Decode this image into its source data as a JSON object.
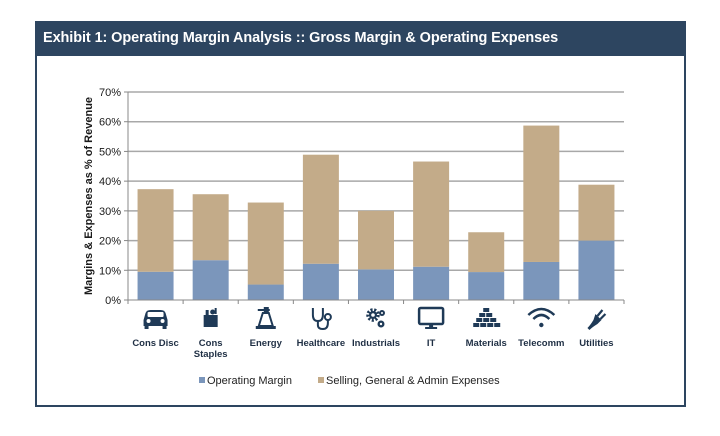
{
  "header": {
    "title": "Exhibit 1: Operating Margin Analysis :: Gross Margin & Operating Expenses"
  },
  "colors": {
    "frame": "#2d4560",
    "operating_margin": "#7b96bb",
    "sga": "#c3ab89",
    "grid": "#a8a8a8",
    "icon": "#1f3a57"
  },
  "chart_data": {
    "type": "bar",
    "stacked": true,
    "title": "Exhibit 1: Operating Margin Analysis :: Gross Margin & Operating Expenses",
    "xlabel": "",
    "ylabel": "Margins & Expenses as % of Revenue",
    "ylim": [
      0,
      70
    ],
    "yticks": [
      0,
      10,
      20,
      30,
      40,
      50,
      60,
      70
    ],
    "ytick_labels": [
      "0%",
      "10%",
      "20%",
      "30%",
      "40%",
      "50%",
      "60%",
      "70%"
    ],
    "grid": true,
    "legend_position": "bottom",
    "categories": [
      "Cons Disc",
      "Cons Staples",
      "Energy",
      "Healthcare",
      "Industrials",
      "IT",
      "Materials",
      "Telecomm",
      "Utilities"
    ],
    "category_icons": [
      "car-icon",
      "grocery-bag-icon",
      "oil-pump-icon",
      "stethoscope-icon",
      "gears-icon",
      "monitor-icon",
      "bricks-icon",
      "wifi-icon",
      "plug-icon"
    ],
    "series": [
      {
        "name": "Operating Margin",
        "values": [
          9.5,
          13.4,
          5.2,
          12.2,
          10.3,
          11.2,
          9.4,
          12.8,
          20.0
        ]
      },
      {
        "name": "Selling, General & Admin Expenses",
        "values": [
          27.8,
          22.2,
          27.6,
          36.7,
          19.7,
          35.4,
          13.4,
          45.9,
          18.8
        ]
      }
    ],
    "totals": [
      37.3,
      35.6,
      32.8,
      48.9,
      30.0,
      46.6,
      22.8,
      58.7,
      38.8
    ]
  }
}
